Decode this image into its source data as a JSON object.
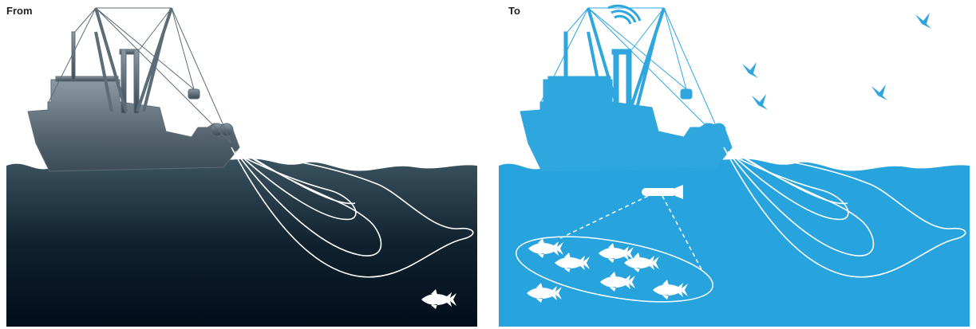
{
  "panels": [
    {
      "label": "From"
    },
    {
      "label": "To"
    }
  ]
}
